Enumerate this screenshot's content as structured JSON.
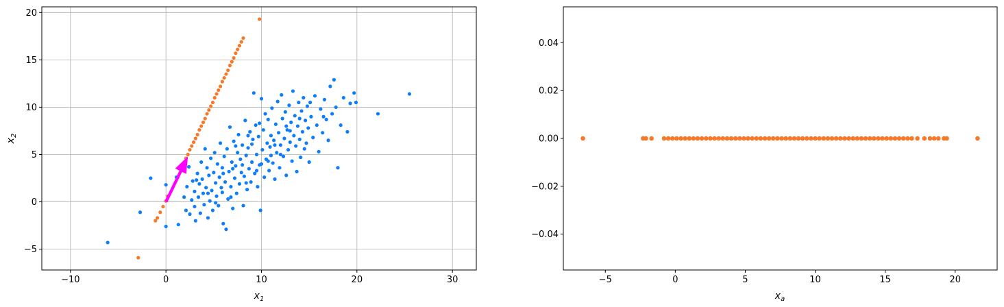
{
  "chart_data": [
    {
      "type": "scatter",
      "xlabel": "x",
      "xlabel_sub": "1",
      "ylabel": "x",
      "ylabel_sub": "2",
      "xlim": [
        -13,
        32.5
      ],
      "ylim": [
        -7.2,
        20.6
      ],
      "xticks": [
        -10,
        0,
        10,
        20,
        30
      ],
      "yticks": [
        -5,
        0,
        5,
        10,
        15,
        20
      ],
      "grid": true,
      "colors": {
        "original": "#0d7dfa",
        "projected": "#f5792a",
        "arrow": "#ff00ff"
      },
      "series": [
        {
          "key": "original",
          "points": [
            [
              -6.1,
              -4.3
            ],
            [
              -2.7,
              -1.1
            ],
            [
              -1.6,
              2.5
            ],
            [
              0.0,
              1.8
            ],
            [
              0.0,
              -2.6
            ],
            [
              1.1,
              2.6
            ],
            [
              1.3,
              -2.4
            ],
            [
              1.9,
              0.5
            ],
            [
              2.1,
              -0.9
            ],
            [
              2.2,
              1.6
            ],
            [
              2.4,
              3.7
            ],
            [
              2.5,
              -1.3
            ],
            [
              2.7,
              0.2
            ],
            [
              2.8,
              2.2
            ],
            [
              3.0,
              1.1
            ],
            [
              3.0,
              -0.5
            ],
            [
              3.1,
              -2.0
            ],
            [
              3.3,
              3.0
            ],
            [
              3.4,
              0.5
            ],
            [
              3.5,
              1.9
            ],
            [
              3.6,
              -1.2
            ],
            [
              3.7,
              4.2
            ],
            [
              3.8,
              2.4
            ],
            [
              3.9,
              0.9
            ],
            [
              4.0,
              -0.3
            ],
            [
              4.1,
              5.6
            ],
            [
              4.2,
              1.5
            ],
            [
              4.3,
              3.6
            ],
            [
              4.4,
              -1.7
            ],
            [
              4.5,
              2.8
            ],
            [
              4.6,
              0.1
            ],
            [
              4.7,
              4.6
            ],
            [
              4.8,
              1.2
            ],
            [
              4.9,
              -0.9
            ],
            [
              5.0,
              3.1
            ],
            [
              5.1,
              5.2
            ],
            [
              5.2,
              2.0
            ],
            [
              5.3,
              0.6
            ],
            [
              5.4,
              4.0
            ],
            [
              5.5,
              -0.4
            ],
            [
              5.6,
              2.6
            ],
            [
              5.7,
              6.2
            ],
            [
              5.8,
              1.5
            ],
            [
              5.9,
              3.6
            ],
            [
              6.0,
              -2.3
            ],
            [
              6.1,
              4.8
            ],
            [
              6.2,
              2.1
            ],
            [
              6.3,
              -2.9
            ],
            [
              6.4,
              5.6
            ],
            [
              6.5,
              0.3
            ],
            [
              6.6,
              3.2
            ],
            [
              6.7,
              7.9
            ],
            [
              6.8,
              1.6
            ],
            [
              6.9,
              4.2
            ],
            [
              7.0,
              -0.7
            ],
            [
              7.1,
              6.4
            ],
            [
              7.2,
              2.5
            ],
            [
              7.3,
              3.8
            ],
            [
              7.4,
              0.9
            ],
            [
              7.5,
              5.2
            ],
            [
              7.6,
              7.1
            ],
            [
              7.7,
              1.9
            ],
            [
              7.8,
              4.5
            ],
            [
              7.9,
              3.1
            ],
            [
              8.0,
              6.0
            ],
            [
              8.1,
              -0.4
            ],
            [
              8.2,
              2.7
            ],
            [
              8.3,
              8.6
            ],
            [
              8.4,
              4.9
            ],
            [
              8.5,
              1.3
            ],
            [
              8.6,
              5.7
            ],
            [
              8.7,
              3.5
            ],
            [
              8.8,
              7.4
            ],
            [
              8.9,
              2.1
            ],
            [
              9.0,
              4.2
            ],
            [
              9.1,
              6.6
            ],
            [
              9.2,
              11.5
            ],
            [
              9.3,
              3.0
            ],
            [
              9.4,
              8.1
            ],
            [
              9.5,
              5.0
            ],
            [
              9.6,
              1.6
            ],
            [
              9.7,
              6.9
            ],
            [
              9.8,
              3.9
            ],
            [
              9.9,
              -0.9
            ],
            [
              10.0,
              10.9
            ],
            [
              10.1,
              5.5
            ],
            [
              10.2,
              7.6
            ],
            [
              10.3,
              2.6
            ],
            [
              10.4,
              9.3
            ],
            [
              10.5,
              4.5
            ],
            [
              10.6,
              6.2
            ],
            [
              10.7,
              8.7
            ],
            [
              10.8,
              3.3
            ],
            [
              10.9,
              5.8
            ],
            [
              11.0,
              7.0
            ],
            [
              11.1,
              9.9
            ],
            [
              11.2,
              4.1
            ],
            [
              11.3,
              6.5
            ],
            [
              11.4,
              2.4
            ],
            [
              11.5,
              8.2
            ],
            [
              11.6,
              5.2
            ],
            [
              11.7,
              10.6
            ],
            [
              11.8,
              7.3
            ],
            [
              11.9,
              3.6
            ],
            [
              12.0,
              6.0
            ],
            [
              12.1,
              11.3
            ],
            [
              12.2,
              8.8
            ],
            [
              12.3,
              4.8
            ],
            [
              12.4,
              6.7
            ],
            [
              12.5,
              9.5
            ],
            [
              12.6,
              2.8
            ],
            [
              12.7,
              7.6
            ],
            [
              12.8,
              5.5
            ],
            [
              12.9,
              10.2
            ],
            [
              13.0,
              6.3
            ],
            [
              13.1,
              8.4
            ],
            [
              13.2,
              4.3
            ],
            [
              13.3,
              11.7
            ],
            [
              13.4,
              7.0
            ],
            [
              13.5,
              9.1
            ],
            [
              13.6,
              5.9
            ],
            [
              13.7,
              3.2
            ],
            [
              13.8,
              8.0
            ],
            [
              13.9,
              10.5
            ],
            [
              14.0,
              6.6
            ],
            [
              14.1,
              4.7
            ],
            [
              14.2,
              9.6
            ],
            [
              14.3,
              7.4
            ],
            [
              14.4,
              11.0
            ],
            [
              14.5,
              5.6
            ],
            [
              14.6,
              8.6
            ],
            [
              14.7,
              6.2
            ],
            [
              14.8,
              10.1
            ],
            [
              14.9,
              7.8
            ],
            [
              15.0,
              4.2
            ],
            [
              15.2,
              9.0
            ],
            [
              15.4,
              6.8
            ],
            [
              15.6,
              11.2
            ],
            [
              15.8,
              8.1
            ],
            [
              16.0,
              5.3
            ],
            [
              16.2,
              9.8
            ],
            [
              16.4,
              7.3
            ],
            [
              16.6,
              10.8
            ],
            [
              16.8,
              8.7
            ],
            [
              17.0,
              6.5
            ],
            [
              17.2,
              12.2
            ],
            [
              17.4,
              9.3
            ],
            [
              17.6,
              12.9
            ],
            [
              17.8,
              10.0
            ],
            [
              18.0,
              3.6
            ],
            [
              18.3,
              8.1
            ],
            [
              18.6,
              11.0
            ],
            [
              19.0,
              7.4
            ],
            [
              19.3,
              10.4
            ],
            [
              19.7,
              11.5
            ],
            [
              19.9,
              10.5
            ],
            [
              22.2,
              9.3
            ],
            [
              25.5,
              11.4
            ],
            [
              3.2,
              2.3
            ],
            [
              4.4,
              0.9
            ],
            [
              5.9,
              1.0
            ],
            [
              7.0,
              3.5
            ],
            [
              8.0,
              3.9
            ],
            [
              9.0,
              6.1
            ],
            [
              10.0,
              4.0
            ],
            [
              11.0,
              4.9
            ],
            [
              12.0,
              5.0
            ],
            [
              13.0,
              7.5
            ],
            [
              6.0,
              3.0
            ],
            [
              7.3,
              5.9
            ],
            [
              8.6,
              7.0
            ],
            [
              9.8,
              8.3
            ],
            [
              11.4,
              6.0
            ],
            [
              12.6,
              8.0
            ],
            [
              14.0,
              8.8
            ],
            [
              15.1,
              10.5
            ],
            [
              16.5,
              9.0
            ],
            [
              5.2,
              -0.1
            ],
            [
              6.8,
              0.5
            ],
            [
              8.4,
              2.0
            ],
            [
              9.5,
              3.3
            ],
            [
              10.7,
              4.3
            ]
          ]
        },
        {
          "key": "projected",
          "points": [
            [
              -2.9,
              -5.9
            ],
            [
              -1.1,
              -2.0
            ],
            [
              -0.9,
              -1.7
            ],
            [
              -0.6,
              -1.1
            ],
            [
              -0.3,
              -0.5
            ],
            [
              0.0,
              0.1
            ],
            [
              0.2,
              0.6
            ],
            [
              1.9,
              4.2
            ],
            [
              2.1,
              4.6
            ],
            [
              2.3,
              5.0
            ],
            [
              2.5,
              5.5
            ],
            [
              2.7,
              5.9
            ],
            [
              2.9,
              6.3
            ],
            [
              3.1,
              6.7
            ],
            [
              3.3,
              7.1
            ],
            [
              3.5,
              7.6
            ],
            [
              3.7,
              8.0
            ],
            [
              3.9,
              8.4
            ],
            [
              4.1,
              8.8
            ],
            [
              4.3,
              9.3
            ],
            [
              4.5,
              9.7
            ],
            [
              4.7,
              10.1
            ],
            [
              4.9,
              10.5
            ],
            [
              5.1,
              11.0
            ],
            [
              5.3,
              11.4
            ],
            [
              5.5,
              11.8
            ],
            [
              5.7,
              12.2
            ],
            [
              5.9,
              12.7
            ],
            [
              6.1,
              13.1
            ],
            [
              6.3,
              13.5
            ],
            [
              6.5,
              13.9
            ],
            [
              6.7,
              14.4
            ],
            [
              6.9,
              14.8
            ],
            [
              7.1,
              15.2
            ],
            [
              7.3,
              15.7
            ],
            [
              7.5,
              16.1
            ],
            [
              7.7,
              16.5
            ],
            [
              7.9,
              16.9
            ],
            [
              8.1,
              17.3
            ],
            [
              9.8,
              19.3
            ]
          ]
        }
      ],
      "arrow": {
        "x0": 0,
        "y0": 0,
        "x1": 2.3,
        "y1": 4.8
      }
    },
    {
      "type": "scatter",
      "xlabel": "x",
      "xlabel_sub": "a",
      "ylabel": "",
      "xlim": [
        -8,
        23
      ],
      "ylim": [
        -0.055,
        0.055
      ],
      "xticks": [
        -5,
        0,
        5,
        10,
        15,
        20
      ],
      "yticks": [
        -0.04,
        -0.02,
        0.0,
        0.02,
        0.04
      ],
      "ytick_labels": [
        "−0.04",
        "−0.02",
        "0.00",
        "0.02",
        "0.04"
      ],
      "grid": false,
      "color": "#f5792a",
      "series": [
        {
          "key": "projected",
          "x": [
            -6.6,
            -2.3,
            -2.1,
            -1.7,
            -0.8,
            -0.5,
            -0.2,
            0.1,
            0.4,
            0.7,
            1.0,
            1.3,
            1.6,
            1.9,
            2.2,
            2.5,
            2.8,
            3.1,
            3.4,
            3.7,
            4.0,
            4.3,
            4.6,
            4.9,
            5.2,
            5.5,
            5.8,
            6.1,
            6.4,
            6.7,
            7.0,
            7.3,
            7.6,
            7.9,
            8.2,
            8.5,
            8.8,
            9.1,
            9.4,
            9.7,
            10.0,
            10.3,
            10.6,
            10.9,
            11.2,
            11.5,
            11.8,
            12.1,
            12.4,
            12.7,
            13.0,
            13.3,
            13.6,
            13.9,
            14.2,
            14.5,
            14.8,
            15.1,
            15.4,
            15.7,
            16.0,
            16.3,
            16.6,
            16.9,
            17.3,
            17.8,
            18.2,
            18.5,
            18.8,
            19.2,
            19.4,
            21.6
          ],
          "y": 0
        }
      ]
    }
  ]
}
